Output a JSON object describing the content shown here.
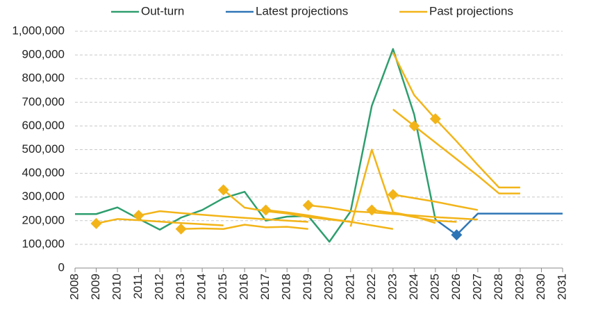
{
  "chart_data": {
    "type": "line",
    "x": [
      2008,
      2009,
      2010,
      2011,
      2012,
      2013,
      2014,
      2015,
      2016,
      2017,
      2018,
      2019,
      2020,
      2021,
      2022,
      2023,
      2024,
      2025,
      2026,
      2027,
      2028,
      2029,
      2030,
      2031
    ],
    "xlim": [
      2008,
      2031
    ],
    "xticks": [
      2008,
      2009,
      2010,
      2011,
      2012,
      2013,
      2014,
      2015,
      2016,
      2017,
      2018,
      2019,
      2020,
      2021,
      2022,
      2023,
      2024,
      2025,
      2026,
      2027,
      2028,
      2029,
      2030,
      2031
    ],
    "ylim": [
      0,
      1000000
    ],
    "yticks": [
      0,
      {
        "value": 100000,
        "label": "100,000"
      },
      {
        "value": 200000,
        "label": "200,000"
      },
      {
        "value": 300000,
        "label": "300,000"
      },
      {
        "value": 400000,
        "label": "400,000"
      },
      {
        "value": 500000,
        "label": "500,000"
      },
      {
        "value": 600000,
        "label": "600,000"
      },
      {
        "value": 700000,
        "label": "700,000"
      },
      {
        "value": 800000,
        "label": "800,000"
      },
      {
        "value": 900000,
        "label": "900,000"
      },
      {
        "value": 1000000,
        "label": "1,000,000"
      }
    ],
    "grid": true,
    "legend": "top",
    "series": [
      {
        "name": "Out-turn",
        "color": "#2e9e6e",
        "values": [
          228000,
          228000,
          256000,
          208000,
          162000,
          213000,
          245000,
          295000,
          322000,
          200000,
          217000,
          220000,
          111000,
          239000,
          685000,
          925000,
          648000,
          205000,
          null,
          null,
          null,
          null,
          null,
          null
        ]
      },
      {
        "name": "Latest projections",
        "color": "#2e75b6",
        "marker_at": 2026,
        "values": [
          null,
          null,
          null,
          null,
          null,
          null,
          null,
          null,
          null,
          null,
          null,
          null,
          null,
          null,
          null,
          null,
          null,
          205000,
          140000,
          230000,
          230000,
          230000,
          230000,
          230000
        ]
      },
      {
        "name": "Past projections",
        "color": "#f2b418",
        "lines": [
          {
            "x": [
              2009,
              2010,
              2011,
              2012,
              2013,
              2014,
              2015
            ],
            "values": [
              188000,
              207000,
              202000,
              196000,
              190000,
              185000,
              180000
            ],
            "marker_at": 2009
          },
          {
            "x": [
              2011,
              2012,
              2013,
              2014,
              2015,
              2016,
              2017,
              2018,
              2019
            ],
            "values": [
              222000,
              240000,
              232000,
              225000,
              218000,
              212000,
              206000,
              200000,
              195000
            ],
            "marker_at": 2011
          },
          {
            "x": [
              2013,
              2014,
              2015,
              2016,
              2017,
              2018,
              2019
            ],
            "values": [
              165000,
              167000,
              165000,
              183000,
              172000,
              174000,
              165000
            ],
            "marker_at": 2013
          },
          {
            "x": [
              2015,
              2016,
              2017,
              2018,
              2019,
              2020,
              2021
            ],
            "values": [
              330000,
              255000,
              240000,
              230000,
              215000,
              205000,
              195000
            ],
            "marker_at": 2015
          },
          {
            "x": [
              2017,
              2018,
              2019,
              2020,
              2021,
              2022,
              2023
            ],
            "values": [
              245000,
              235000,
              222000,
              208000,
              195000,
              180000,
              165000
            ],
            "marker_at": 2017
          },
          {
            "x": [
              2019,
              2020,
              2021,
              2022,
              2023,
              2024,
              2025,
              2026,
              2027
            ],
            "values": [
              265000,
              255000,
              240000,
              235000,
              228000,
              222000,
              215000,
              210000,
              205000
            ],
            "marker_at": 2019
          },
          {
            "x": [
              2021,
              2022,
              2023,
              2024,
              2025
            ],
            "values": [
              175000,
              500000,
              235000,
              218000,
              190000
            ]
          },
          {
            "x": [
              2022,
              2023,
              2024,
              2025,
              2026
            ],
            "values": [
              245000,
              232000,
              215000,
              200000,
              195000
            ],
            "marker_at": 2022
          },
          {
            "x": [
              2023,
              2024,
              2025,
              2026,
              2027
            ],
            "values": [
              310000,
              295000,
              280000,
              262000,
              245000
            ],
            "marker_at": 2023
          },
          {
            "x": [
              2023,
              2024,
              2025,
              2026,
              2027,
              2028,
              2029
            ],
            "values": [
              670000,
              600000,
              530000,
              460000,
              390000,
              315000,
              315000
            ],
            "marker_at": 2024
          },
          {
            "x": [
              2023,
              2024,
              2025,
              2026,
              2027,
              2028,
              2029
            ],
            "values": [
              910000,
              730000,
              630000,
              535000,
              435000,
              340000,
              340000
            ],
            "marker_at": 2025
          }
        ]
      }
    ]
  }
}
